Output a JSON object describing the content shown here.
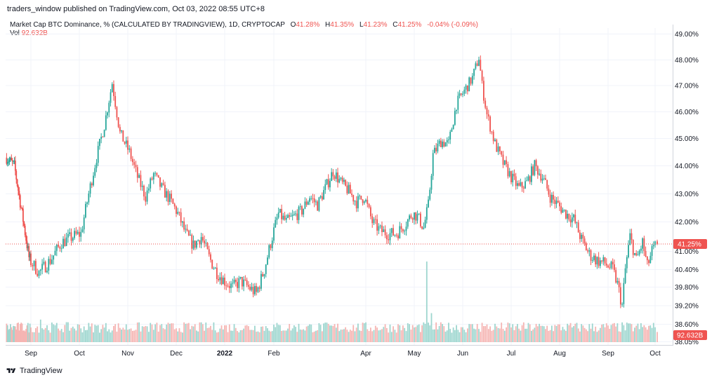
{
  "header": {
    "publish_text": "traders_window published on TradingView.com, Oct 03, 2022 08:55 UTC+8"
  },
  "legend": {
    "symbol": "Market Cap BTC Dominance, % (CALCULATED BY TRADINGVIEW), 1D, CRYPTOCAP",
    "o_label": "O",
    "o_value": "41.28%",
    "h_label": "H",
    "h_value": "41.35%",
    "l_label": "L",
    "l_value": "41.23%",
    "c_label": "C",
    "c_value": "41.25%",
    "change": "-0.04% (-0.09%)",
    "vol_label": "Vol",
    "vol_value": "92.632B"
  },
  "footer": {
    "brand": "TradingView"
  },
  "colors": {
    "up": "#26a69a",
    "down": "#ef5350",
    "up_vol": "#9ed6cf",
    "down_vol": "#f5b5b3",
    "grid": "#f0f3fa",
    "axis_text": "#131722"
  },
  "chart_data": {
    "type": "candlestick",
    "y_axis": {
      "unit": "%",
      "ticks": [
        "49.00%",
        "48.00%",
        "47.00%",
        "46.00%",
        "45.00%",
        "44.00%",
        "43.00%",
        "42.00%",
        "41.00%",
        "40.40%",
        "39.80%",
        "39.20%",
        "38.60%",
        "38.05%"
      ],
      "tick_values": [
        49.0,
        48.0,
        47.0,
        46.0,
        45.0,
        44.0,
        43.0,
        42.0,
        41.0,
        40.4,
        39.8,
        39.2,
        38.6,
        38.05
      ]
    },
    "x_axis": {
      "ticks": [
        "Sep",
        "Oct",
        "Nov",
        "Dec",
        "2022",
        "Feb",
        "Apr",
        "May",
        "Jun",
        "Jul",
        "Aug",
        "Sep",
        "Oct"
      ],
      "tick_bold": [
        false,
        false,
        false,
        false,
        true,
        false,
        false,
        false,
        false,
        false,
        false,
        false,
        false
      ],
      "tick_dates": [
        "2021-09-01",
        "2021-10-01",
        "2021-11-01",
        "2021-12-01",
        "2022-01-01",
        "2022-02-01",
        "2022-04-01",
        "2022-05-01",
        "2022-06-01",
        "2022-07-01",
        "2022-08-01",
        "2022-09-01",
        "2022-10-01"
      ]
    },
    "last_price_label": "41.25%",
    "last_price": 41.25,
    "volume_label": "92.632B",
    "close_path": [
      {
        "x": "2021-08-07",
        "y": 44.3
      },
      {
        "x": "2021-08-15",
        "y": 44.0
      },
      {
        "x": "2021-08-22",
        "y": 42.5
      },
      {
        "x": "2021-08-30",
        "y": 40.8
      },
      {
        "x": "2021-09-06",
        "y": 40.3
      },
      {
        "x": "2021-09-13",
        "y": 40.7
      },
      {
        "x": "2021-09-20",
        "y": 41.3
      },
      {
        "x": "2021-09-27",
        "y": 41.5
      },
      {
        "x": "2021-10-02",
        "y": 41.6
      },
      {
        "x": "2021-10-07",
        "y": 43.0
      },
      {
        "x": "2021-10-12",
        "y": 44.3
      },
      {
        "x": "2021-10-17",
        "y": 45.5
      },
      {
        "x": "2021-10-22",
        "y": 47.1
      },
      {
        "x": "2021-10-27",
        "y": 45.2
      },
      {
        "x": "2021-11-02",
        "y": 44.5
      },
      {
        "x": "2021-11-07",
        "y": 43.6
      },
      {
        "x": "2021-11-12",
        "y": 42.9
      },
      {
        "x": "2021-11-17",
        "y": 43.7
      },
      {
        "x": "2021-11-22",
        "y": 43.2
      },
      {
        "x": "2021-11-27",
        "y": 42.8
      },
      {
        "x": "2021-12-02",
        "y": 42.3
      },
      {
        "x": "2021-12-07",
        "y": 41.6
      },
      {
        "x": "2021-12-12",
        "y": 41.2
      },
      {
        "x": "2021-12-17",
        "y": 41.5
      },
      {
        "x": "2021-12-22",
        "y": 40.8
      },
      {
        "x": "2021-12-27",
        "y": 40.3
      },
      {
        "x": "2022-01-01",
        "y": 40.0
      },
      {
        "x": "2022-01-06",
        "y": 39.8
      },
      {
        "x": "2022-01-11",
        "y": 40.0
      },
      {
        "x": "2022-01-16",
        "y": 39.8
      },
      {
        "x": "2022-01-21",
        "y": 39.6
      },
      {
        "x": "2022-01-26",
        "y": 40.4
      },
      {
        "x": "2022-01-31",
        "y": 41.5
      },
      {
        "x": "2022-02-04",
        "y": 42.3
      },
      {
        "x": "2022-02-09",
        "y": 42.0
      },
      {
        "x": "2022-02-14",
        "y": 42.2
      },
      {
        "x": "2022-02-19",
        "y": 42.4
      },
      {
        "x": "2022-02-24",
        "y": 42.9
      },
      {
        "x": "2022-03-01",
        "y": 42.6
      },
      {
        "x": "2022-03-06",
        "y": 43.2
      },
      {
        "x": "2022-03-11",
        "y": 43.8
      },
      {
        "x": "2022-03-16",
        "y": 43.4
      },
      {
        "x": "2022-03-21",
        "y": 43.1
      },
      {
        "x": "2022-03-26",
        "y": 42.7
      },
      {
        "x": "2022-03-31",
        "y": 42.9
      },
      {
        "x": "2022-04-05",
        "y": 42.0
      },
      {
        "x": "2022-04-10",
        "y": 41.7
      },
      {
        "x": "2022-04-15",
        "y": 41.6
      },
      {
        "x": "2022-04-20",
        "y": 41.6
      },
      {
        "x": "2022-04-25",
        "y": 41.9
      },
      {
        "x": "2022-04-30",
        "y": 42.3
      },
      {
        "x": "2022-05-03",
        "y": 42.2
      },
      {
        "x": "2022-05-07",
        "y": 41.8
      },
      {
        "x": "2022-05-10",
        "y": 42.6
      },
      {
        "x": "2022-05-13",
        "y": 44.4
      },
      {
        "x": "2022-05-18",
        "y": 44.9
      },
      {
        "x": "2022-05-23",
        "y": 44.8
      },
      {
        "x": "2022-05-28",
        "y": 46.3
      },
      {
        "x": "2022-06-02",
        "y": 46.8
      },
      {
        "x": "2022-06-07",
        "y": 47.3
      },
      {
        "x": "2022-06-11",
        "y": 48.1
      },
      {
        "x": "2022-06-13",
        "y": 47.0
      },
      {
        "x": "2022-06-16",
        "y": 45.9
      },
      {
        "x": "2022-06-21",
        "y": 44.8
      },
      {
        "x": "2022-06-26",
        "y": 44.1
      },
      {
        "x": "2022-07-01",
        "y": 43.6
      },
      {
        "x": "2022-07-06",
        "y": 43.2
      },
      {
        "x": "2022-07-11",
        "y": 43.4
      },
      {
        "x": "2022-07-16",
        "y": 44.0
      },
      {
        "x": "2022-07-21",
        "y": 43.6
      },
      {
        "x": "2022-07-26",
        "y": 42.9
      },
      {
        "x": "2022-07-31",
        "y": 42.6
      },
      {
        "x": "2022-08-05",
        "y": 42.3
      },
      {
        "x": "2022-08-10",
        "y": 42.1
      },
      {
        "x": "2022-08-15",
        "y": 41.4
      },
      {
        "x": "2022-08-20",
        "y": 40.9
      },
      {
        "x": "2022-08-25",
        "y": 40.7
      },
      {
        "x": "2022-08-30",
        "y": 40.6
      },
      {
        "x": "2022-09-04",
        "y": 40.4
      },
      {
        "x": "2022-09-07",
        "y": 39.9
      },
      {
        "x": "2022-09-10",
        "y": 39.2
      },
      {
        "x": "2022-09-12",
        "y": 40.4
      },
      {
        "x": "2022-09-15",
        "y": 41.5
      },
      {
        "x": "2022-09-19",
        "y": 40.7
      },
      {
        "x": "2022-09-23",
        "y": 41.3
      },
      {
        "x": "2022-09-26",
        "y": 40.5
      },
      {
        "x": "2022-09-29",
        "y": 41.0
      },
      {
        "x": "2022-10-02",
        "y": 41.25
      }
    ],
    "volume_spikes": [
      {
        "x": "2022-05-09",
        "vol_rel": 1.0
      },
      {
        "x": "2022-05-12",
        "vol_rel": 0.36
      },
      {
        "x": "2021-09-07",
        "vol_rel": 0.28
      },
      {
        "x": "2022-06-13",
        "vol_rel": 0.24
      }
    ]
  }
}
